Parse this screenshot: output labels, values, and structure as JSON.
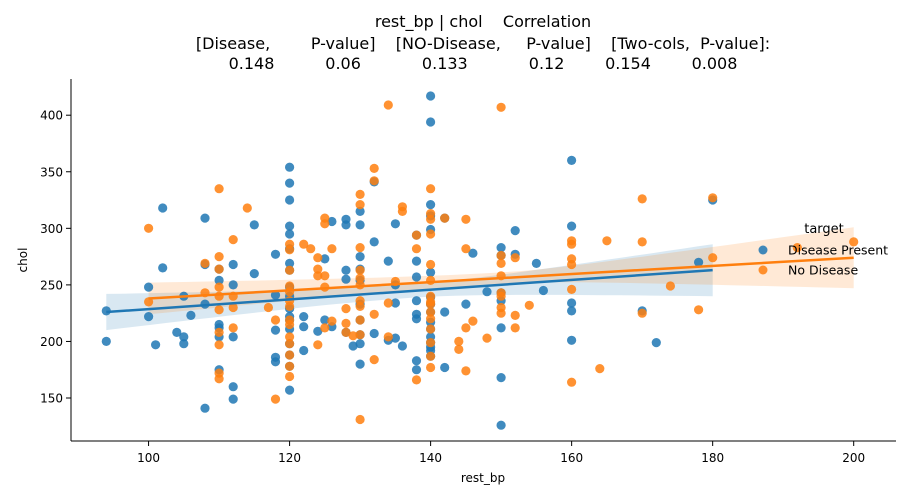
{
  "chart_data": {
    "type": "scatter",
    "title_lines": [
      "rest_bp | chol    Correlation",
      "[Disease,        P-value]    [NO-Disease,     P-value]    [Two-cols,  P-value]:",
      "0.148          0.06            0.133            0.12        0.154        0.008"
    ],
    "xlabel": "rest_bp",
    "ylabel": "chol",
    "xlim": [
      89,
      206
    ],
    "ylim": [
      112,
      432
    ],
    "xticks": [
      100,
      120,
      140,
      160,
      180,
      200
    ],
    "yticks": [
      150,
      200,
      250,
      300,
      350,
      400
    ],
    "grid": false,
    "legend": {
      "title": "target",
      "placement": "right",
      "entries": [
        "Disease Present",
        "No Disease"
      ]
    },
    "series": [
      {
        "name": "Disease Present",
        "color": "#1f77b4",
        "regression": {
          "x": [
            94,
            180
          ],
          "y": [
            226,
            263
          ],
          "ci_halfwidth_ends": [
            16,
            23
          ],
          "ci_halfwidth_mid": 6
        },
        "points": [
          [
            94,
            227
          ],
          [
            94,
            200
          ],
          [
            100,
            248
          ],
          [
            100,
            222
          ],
          [
            101,
            197
          ],
          [
            102,
            318
          ],
          [
            102,
            265
          ],
          [
            104,
            208
          ],
          [
            105,
            240
          ],
          [
            105,
            204
          ],
          [
            105,
            198
          ],
          [
            106,
            223
          ],
          [
            108,
            309
          ],
          [
            108,
            268
          ],
          [
            108,
            233
          ],
          [
            108,
            141
          ],
          [
            110,
            215
          ],
          [
            110,
            212
          ],
          [
            110,
            204
          ],
          [
            110,
            175
          ],
          [
            110,
            264
          ],
          [
            110,
            254
          ],
          [
            112,
            268
          ],
          [
            112,
            250
          ],
          [
            112,
            204
          ],
          [
            112,
            160
          ],
          [
            112,
            149
          ],
          [
            115,
            303
          ],
          [
            115,
            260
          ],
          [
            118,
            277
          ],
          [
            118,
            241
          ],
          [
            118,
            210
          ],
          [
            118,
            186
          ],
          [
            118,
            182
          ],
          [
            120,
            354
          ],
          [
            120,
            340
          ],
          [
            120,
            325
          ],
          [
            120,
            302
          ],
          [
            120,
            295
          ],
          [
            120,
            282
          ],
          [
            120,
            269
          ],
          [
            120,
            263
          ],
          [
            120,
            248
          ],
          [
            120,
            240
          ],
          [
            120,
            229
          ],
          [
            120,
            222
          ],
          [
            120,
            219
          ],
          [
            120,
            211
          ],
          [
            120,
            198
          ],
          [
            120,
            188
          ],
          [
            120,
            178
          ],
          [
            120,
            157
          ],
          [
            122,
            222
          ],
          [
            122,
            213
          ],
          [
            122,
            192
          ],
          [
            124,
            209
          ],
          [
            125,
            273
          ],
          [
            125,
            219
          ],
          [
            126,
            306
          ],
          [
            126,
            213
          ],
          [
            128,
            308
          ],
          [
            128,
            303
          ],
          [
            128,
            263
          ],
          [
            128,
            255
          ],
          [
            128,
            208
          ],
          [
            129,
            196
          ],
          [
            130,
            315
          ],
          [
            130,
            303
          ],
          [
            130,
            275
          ],
          [
            130,
            264
          ],
          [
            130,
            254
          ],
          [
            130,
            233
          ],
          [
            130,
            219
          ],
          [
            130,
            206
          ],
          [
            130,
            198
          ],
          [
            130,
            180
          ],
          [
            132,
            341
          ],
          [
            132,
            288
          ],
          [
            132,
            207
          ],
          [
            134,
            271
          ],
          [
            134,
            201
          ],
          [
            135,
            304
          ],
          [
            135,
            250
          ],
          [
            135,
            234
          ],
          [
            135,
            203
          ],
          [
            136,
            196
          ],
          [
            138,
            294
          ],
          [
            138,
            271
          ],
          [
            138,
            257
          ],
          [
            138,
            236
          ],
          [
            138,
            224
          ],
          [
            138,
            220
          ],
          [
            138,
            183
          ],
          [
            138,
            175
          ],
          [
            140,
            417
          ],
          [
            140,
            394
          ],
          [
            140,
            321
          ],
          [
            140,
            311
          ],
          [
            140,
            299
          ],
          [
            140,
            261
          ],
          [
            140,
            239
          ],
          [
            140,
            233
          ],
          [
            140,
            226
          ],
          [
            140,
            217
          ],
          [
            140,
            211
          ],
          [
            140,
            204
          ],
          [
            140,
            199
          ],
          [
            140,
            195
          ],
          [
            140,
            192
          ],
          [
            140,
            187
          ],
          [
            142,
            309
          ],
          [
            142,
            226
          ],
          [
            142,
            177
          ],
          [
            145,
            233
          ],
          [
            146,
            278
          ],
          [
            148,
            244
          ],
          [
            150,
            283
          ],
          [
            150,
            276
          ],
          [
            150,
            243
          ],
          [
            150,
            236
          ],
          [
            150,
            212
          ],
          [
            150,
            168
          ],
          [
            150,
            126
          ],
          [
            152,
            298
          ],
          [
            152,
            277
          ],
          [
            155,
            269
          ],
          [
            156,
            245
          ],
          [
            160,
            360
          ],
          [
            160,
            302
          ],
          [
            160,
            234
          ],
          [
            160,
            227
          ],
          [
            160,
            201
          ],
          [
            170,
            227
          ],
          [
            172,
            199
          ],
          [
            178,
            270
          ],
          [
            180,
            325
          ]
        ]
      },
      {
        "name": "No Disease",
        "color": "#ff7f0e",
        "regression": {
          "x": [
            100,
            200
          ],
          "y": [
            238,
            274
          ],
          "ci_halfwidth_ends": [
            14,
            27
          ],
          "ci_halfwidth_mid": 5
        },
        "points": [
          [
            100,
            300
          ],
          [
            100,
            235
          ],
          [
            108,
            269
          ],
          [
            108,
            243
          ],
          [
            110,
            335
          ],
          [
            110,
            275
          ],
          [
            110,
            264
          ],
          [
            110,
            248
          ],
          [
            110,
            240
          ],
          [
            110,
            228
          ],
          [
            110,
            208
          ],
          [
            110,
            197
          ],
          [
            110,
            172
          ],
          [
            110,
            167
          ],
          [
            112,
            290
          ],
          [
            112,
            240
          ],
          [
            112,
            230
          ],
          [
            112,
            212
          ],
          [
            114,
            318
          ],
          [
            117,
            230
          ],
          [
            118,
            219
          ],
          [
            118,
            149
          ],
          [
            120,
            286
          ],
          [
            120,
            281
          ],
          [
            120,
            263
          ],
          [
            120,
            249
          ],
          [
            120,
            244
          ],
          [
            120,
            236
          ],
          [
            120,
            231
          ],
          [
            120,
            219
          ],
          [
            120,
            215
          ],
          [
            120,
            204
          ],
          [
            120,
            198
          ],
          [
            120,
            188
          ],
          [
            120,
            178
          ],
          [
            120,
            169
          ],
          [
            122,
            286
          ],
          [
            123,
            282
          ],
          [
            124,
            274
          ],
          [
            124,
            264
          ],
          [
            124,
            258
          ],
          [
            124,
            197
          ],
          [
            125,
            309
          ],
          [
            125,
            304
          ],
          [
            125,
            258
          ],
          [
            125,
            248
          ],
          [
            125,
            212
          ],
          [
            126,
            282
          ],
          [
            126,
            218
          ],
          [
            128,
            229
          ],
          [
            128,
            216
          ],
          [
            128,
            208
          ],
          [
            129,
            205
          ],
          [
            130,
            330
          ],
          [
            130,
            321
          ],
          [
            130,
            283
          ],
          [
            130,
            263
          ],
          [
            130,
            256
          ],
          [
            130,
            250
          ],
          [
            130,
            236
          ],
          [
            130,
            231
          ],
          [
            130,
            219
          ],
          [
            130,
            206
          ],
          [
            130,
            131
          ],
          [
            132,
            353
          ],
          [
            132,
            342
          ],
          [
            132,
            224
          ],
          [
            132,
            184
          ],
          [
            134,
            409
          ],
          [
            134,
            234
          ],
          [
            134,
            204
          ],
          [
            135,
            253
          ],
          [
            136,
            319
          ],
          [
            136,
            315
          ],
          [
            138,
            294
          ],
          [
            138,
            282
          ],
          [
            138,
            166
          ],
          [
            140,
            335
          ],
          [
            140,
            313
          ],
          [
            140,
            308
          ],
          [
            140,
            295
          ],
          [
            140,
            268
          ],
          [
            140,
            254
          ],
          [
            140,
            240
          ],
          [
            140,
            235
          ],
          [
            140,
            233
          ],
          [
            140,
            226
          ],
          [
            140,
            220
          ],
          [
            140,
            211
          ],
          [
            140,
            199
          ],
          [
            140,
            187
          ],
          [
            140,
            177
          ],
          [
            142,
            309
          ],
          [
            144,
            200
          ],
          [
            144,
            193
          ],
          [
            145,
            308
          ],
          [
            145,
            282
          ],
          [
            145,
            212
          ],
          [
            145,
            174
          ],
          [
            146,
            218
          ],
          [
            148,
            203
          ],
          [
            150,
            407
          ],
          [
            150,
            276
          ],
          [
            150,
            269
          ],
          [
            150,
            258
          ],
          [
            150,
            243
          ],
          [
            150,
            240
          ],
          [
            150,
            230
          ],
          [
            150,
            225
          ],
          [
            152,
            274
          ],
          [
            152,
            223
          ],
          [
            152,
            212
          ],
          [
            154,
            232
          ],
          [
            160,
            289
          ],
          [
            160,
            286
          ],
          [
            160,
            273
          ],
          [
            160,
            268
          ],
          [
            160,
            246
          ],
          [
            160,
            164
          ],
          [
            164,
            176
          ],
          [
            165,
            289
          ],
          [
            170,
            326
          ],
          [
            170,
            288
          ],
          [
            170,
            225
          ],
          [
            174,
            249
          ],
          [
            178,
            228
          ],
          [
            180,
            327
          ],
          [
            180,
            274
          ],
          [
            192,
            283
          ],
          [
            200,
            288
          ]
        ]
      }
    ]
  }
}
